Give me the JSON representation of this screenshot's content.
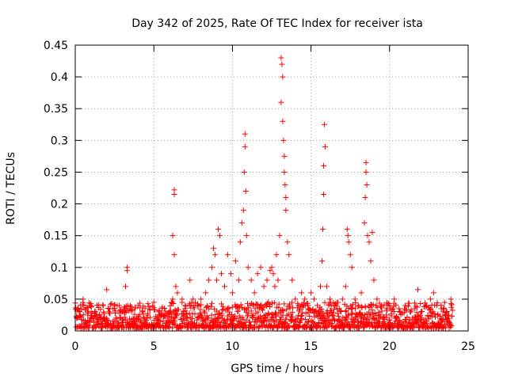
{
  "chart_data": {
    "type": "scatter",
    "title": "Day 342 of 2025, Rate Of TEC Index for receiver ista",
    "xlabel": "GPS time / hours",
    "ylabel": "ROTI / TECUs",
    "xlim": [
      0,
      25
    ],
    "ylim": [
      0,
      0.45
    ],
    "xticks": [
      0,
      5,
      10,
      15,
      20,
      25
    ],
    "yticks": [
      0,
      0.05,
      0.1,
      0.15,
      0.2,
      0.25,
      0.3,
      0.35,
      0.4,
      0.45
    ],
    "xtick_labels": [
      "0",
      "5",
      "10",
      "15",
      "20",
      "25"
    ],
    "ytick_labels": [
      "0",
      "0.05",
      "0.1",
      "0.15",
      "0.2",
      "0.25",
      "0.3",
      "0.35",
      "0.4",
      "0.45"
    ],
    "grid": true,
    "marker": "+",
    "color": "#ff0000",
    "series": [
      {
        "name": "ROTI",
        "x": [
          0.1,
          0.3,
          0.5,
          0.8,
          1.0,
          1.3,
          1.6,
          2.0,
          2.2,
          2.5,
          2.8,
          3.0,
          3.2,
          3.3,
          3.3,
          3.5,
          3.8,
          4.0,
          4.3,
          4.6,
          5.0,
          5.3,
          5.6,
          6.0,
          6.2,
          6.2,
          6.3,
          6.3,
          6.3,
          6.4,
          6.5,
          6.8,
          7.0,
          7.3,
          7.5,
          7.8,
          8.0,
          8.3,
          8.5,
          8.7,
          8.8,
          8.9,
          9.0,
          9.1,
          9.2,
          9.3,
          9.5,
          9.7,
          9.9,
          10.0,
          10.2,
          10.4,
          10.5,
          10.6,
          10.7,
          10.75,
          10.8,
          10.8,
          10.85,
          10.9,
          11.0,
          11.2,
          11.4,
          11.6,
          11.8,
          12.0,
          12.2,
          12.4,
          12.5,
          12.6,
          12.7,
          12.8,
          12.9,
          13.0,
          13.1,
          13.1,
          13.15,
          13.2,
          13.2,
          13.25,
          13.3,
          13.3,
          13.35,
          13.4,
          13.4,
          13.5,
          13.6,
          13.8,
          14.0,
          14.2,
          14.4,
          14.6,
          14.8,
          15.0,
          15.2,
          15.4,
          15.6,
          15.7,
          15.75,
          15.8,
          15.8,
          15.85,
          15.9,
          16.0,
          16.2,
          16.5,
          16.8,
          17.0,
          17.2,
          17.3,
          17.35,
          17.4,
          17.5,
          17.6,
          17.8,
          18.0,
          18.2,
          18.4,
          18.45,
          18.5,
          18.5,
          18.55,
          18.6,
          18.7,
          18.8,
          18.9,
          19.0,
          19.2,
          19.5,
          19.8,
          20.0,
          20.3,
          20.6,
          21.0,
          21.3,
          21.6,
          21.8,
          22.0,
          22.3,
          22.6,
          22.8,
          23.0,
          23.3,
          23.6,
          23.9
        ],
        "y": [
          0.02,
          0.03,
          0.05,
          0.025,
          0.04,
          0.03,
          0.02,
          0.065,
          0.03,
          0.035,
          0.04,
          0.03,
          0.07,
          0.095,
          0.1,
          0.04,
          0.035,
          0.04,
          0.03,
          0.025,
          0.045,
          0.03,
          0.025,
          0.03,
          0.05,
          0.15,
          0.215,
          0.222,
          0.12,
          0.07,
          0.06,
          0.05,
          0.04,
          0.08,
          0.05,
          0.04,
          0.05,
          0.06,
          0.08,
          0.1,
          0.13,
          0.12,
          0.08,
          0.16,
          0.15,
          0.09,
          0.07,
          0.12,
          0.09,
          0.06,
          0.11,
          0.08,
          0.14,
          0.17,
          0.19,
          0.25,
          0.29,
          0.31,
          0.22,
          0.15,
          0.1,
          0.08,
          0.06,
          0.09,
          0.1,
          0.07,
          0.08,
          0.095,
          0.1,
          0.09,
          0.07,
          0.12,
          0.08,
          0.15,
          0.36,
          0.43,
          0.42,
          0.4,
          0.33,
          0.3,
          0.275,
          0.25,
          0.23,
          0.21,
          0.19,
          0.14,
          0.12,
          0.08,
          0.05,
          0.04,
          0.06,
          0.05,
          0.04,
          0.06,
          0.05,
          0.04,
          0.07,
          0.11,
          0.16,
          0.215,
          0.26,
          0.325,
          0.29,
          0.07,
          0.05,
          0.04,
          0.035,
          0.05,
          0.07,
          0.16,
          0.15,
          0.14,
          0.12,
          0.1,
          0.05,
          0.04,
          0.06,
          0.17,
          0.21,
          0.25,
          0.265,
          0.23,
          0.15,
          0.14,
          0.11,
          0.155,
          0.08,
          0.05,
          0.04,
          0.035,
          0.04,
          0.05,
          0.035,
          0.04,
          0.03,
          0.035,
          0.065,
          0.03,
          0.04,
          0.05,
          0.06,
          0.04,
          0.035,
          0.03,
          0.05
        ]
      }
    ],
    "background_band": {
      "description": "dense cluster of low ROTI values along the x axis",
      "x": [
        0,
        24
      ],
      "y_range": [
        0.005,
        0.045
      ]
    }
  }
}
